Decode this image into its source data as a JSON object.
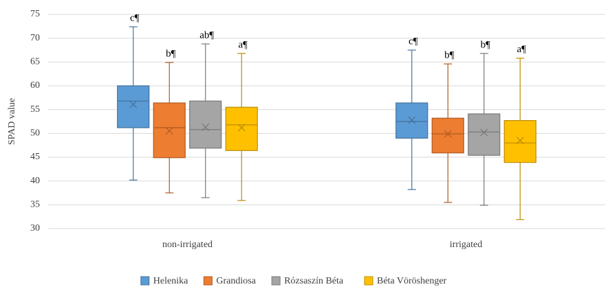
{
  "chart_data": {
    "type": "box",
    "y_label": "SPAD value",
    "categories": [
      "non-irrigated",
      "irrigated"
    ],
    "ylim": [
      30,
      75
    ],
    "yticks": [
      30,
      35,
      40,
      45,
      50,
      55,
      60,
      65,
      70,
      75
    ],
    "grid": true,
    "legend": "bottom",
    "series": [
      {
        "name": "Helenika",
        "color": "#5b9bd5",
        "stroke": "#41719c",
        "labels": [
          "c¶",
          "c¶"
        ],
        "min": [
          40.2,
          38.2
        ],
        "q1": [
          51.2,
          49.0
        ],
        "median": [
          56.8,
          52.5
        ],
        "q3": [
          60.0,
          56.4
        ],
        "max": [
          72.4,
          67.5
        ],
        "mean": [
          56.1,
          52.8
        ]
      },
      {
        "name": "Grandiosa",
        "color": "#ed7d31",
        "stroke": "#ae5a21",
        "labels": [
          "b¶",
          "b¶"
        ],
        "min": [
          37.5,
          35.5
        ],
        "q1": [
          44.9,
          45.9
        ],
        "median": [
          51.2,
          49.9
        ],
        "q3": [
          56.4,
          53.2
        ],
        "max": [
          64.9,
          64.6
        ],
        "mean": [
          50.5,
          49.9
        ]
      },
      {
        "name": "Rózsaszín Béta",
        "color": "#a5a5a5",
        "stroke": "#787878",
        "labels": [
          "ab¶",
          "b¶"
        ],
        "min": [
          36.5,
          34.9
        ],
        "q1": [
          46.9,
          45.4
        ],
        "median": [
          50.8,
          50.3
        ],
        "q3": [
          56.8,
          54.1
        ],
        "max": [
          68.8,
          66.8
        ],
        "mean": [
          51.3,
          50.2
        ]
      },
      {
        "name": "Béta Vöröshenger",
        "color": "#ffc000",
        "stroke": "#bc8c00",
        "labels": [
          "a¶",
          "a¶"
        ],
        "min": [
          35.9,
          31.9
        ],
        "q1": [
          46.4,
          43.9
        ],
        "median": [
          51.8,
          48.0
        ],
        "q3": [
          55.5,
          52.7
        ],
        "max": [
          66.8,
          65.8
        ],
        "mean": [
          51.2,
          48.5
        ]
      }
    ]
  }
}
